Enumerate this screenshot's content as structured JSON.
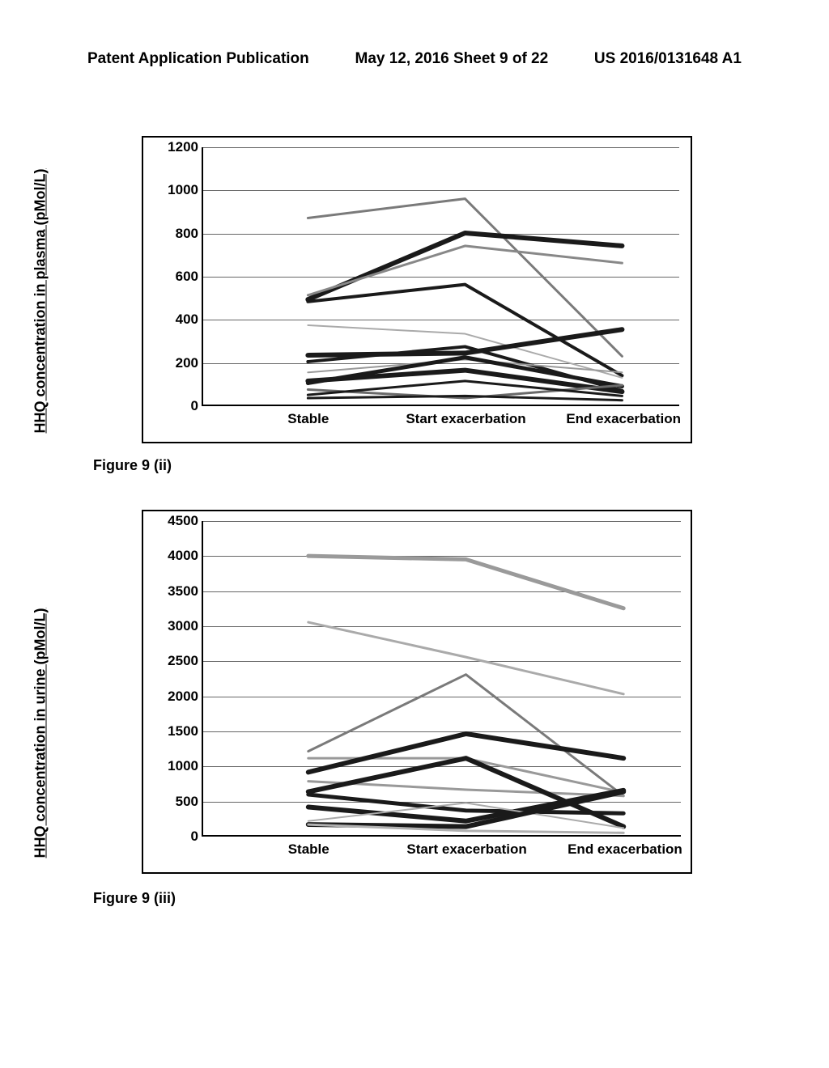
{
  "header": {
    "left": "Patent Application Publication",
    "middle": "May 12, 2016  Sheet 9 of 22",
    "right": "US 2016/0131648 A1"
  },
  "chart1": {
    "type": "line",
    "caption": "Figure 9 (ii)",
    "ylabel": "HHQ concentration in plasma (pMol/L)",
    "xcategories": [
      "Stable",
      "Start exacerbation",
      "End exacerbation"
    ],
    "ylim": [
      0,
      1200
    ],
    "ytick_step": 200,
    "yticks": [
      0,
      200,
      400,
      600,
      800,
      1000,
      1200
    ],
    "grid_color": "#666666",
    "background_color": "#ffffff",
    "series": [
      {
        "values": [
          870,
          960,
          225
        ],
        "color": "#7a7a7a",
        "width": 3
      },
      {
        "values": [
          490,
          800,
          740
        ],
        "color": "#1a1a1a",
        "width": 6
      },
      {
        "values": [
          510,
          740,
          660
        ],
        "color": "#888888",
        "width": 3
      },
      {
        "values": [
          480,
          560,
          135
        ],
        "color": "#1a1a1a",
        "width": 4
      },
      {
        "values": [
          370,
          330,
          125
        ],
        "color": "#aaaaaa",
        "width": 2
      },
      {
        "values": [
          230,
          240,
          350
        ],
        "color": "#1a1a1a",
        "width": 6
      },
      {
        "values": [
          200,
          270,
          65
        ],
        "color": "#1a1a1a",
        "width": 4
      },
      {
        "values": [
          150,
          210,
          150
        ],
        "color": "#999999",
        "width": 2
      },
      {
        "values": [
          100,
          220,
          85
        ],
        "color": "#1a1a1a",
        "width": 5
      },
      {
        "values": [
          110,
          160,
          60
        ],
        "color": "#1a1a1a",
        "width": 6
      },
      {
        "values": [
          70,
          30,
          90
        ],
        "color": "#6a6a6a",
        "width": 3
      },
      {
        "values": [
          45,
          110,
          40
        ],
        "color": "#1a1a1a",
        "width": 3
      },
      {
        "values": [
          30,
          40,
          20
        ],
        "color": "#1a1a1a",
        "width": 3
      }
    ]
  },
  "chart2": {
    "type": "line",
    "caption": "Figure 9 (iii)",
    "ylabel": "HHQ concentration in urine (pMol/L)",
    "xcategories": [
      "Stable",
      "Start exacerbation",
      "End exacerbation"
    ],
    "ylim": [
      0,
      4500
    ],
    "ytick_step": 500,
    "yticks": [
      0,
      500,
      1000,
      1500,
      2000,
      2500,
      3000,
      3500,
      4000,
      4500
    ],
    "grid_color": "#666666",
    "background_color": "#ffffff",
    "series": [
      {
        "values": [
          4000,
          3950,
          3250
        ],
        "color": "#9a9a9a",
        "width": 5
      },
      {
        "values": [
          3050,
          2550,
          2020
        ],
        "color": "#aaaaaa",
        "width": 3
      },
      {
        "values": [
          1200,
          2300,
          560
        ],
        "color": "#7a7a7a",
        "width": 3
      },
      {
        "values": [
          1100,
          1100,
          610
        ],
        "color": "#999999",
        "width": 3
      },
      {
        "values": [
          900,
          1450,
          1100
        ],
        "color": "#1a1a1a",
        "width": 6
      },
      {
        "values": [
          770,
          650,
          560
        ],
        "color": "#999999",
        "width": 3
      },
      {
        "values": [
          620,
          1100,
          120
        ],
        "color": "#1a1a1a",
        "width": 6
      },
      {
        "values": [
          580,
          350,
          310
        ],
        "color": "#1a1a1a",
        "width": 5
      },
      {
        "values": [
          400,
          200,
          640
        ],
        "color": "#1a1a1a",
        "width": 6
      },
      {
        "values": [
          200,
          460,
          100
        ],
        "color": "#aaaaaa",
        "width": 2
      },
      {
        "values": [
          150,
          120,
          620
        ],
        "color": "#1a1a1a",
        "width": 6
      },
      {
        "values": [
          150,
          60,
          30
        ],
        "color": "#b0b0b0",
        "width": 3
      }
    ]
  }
}
